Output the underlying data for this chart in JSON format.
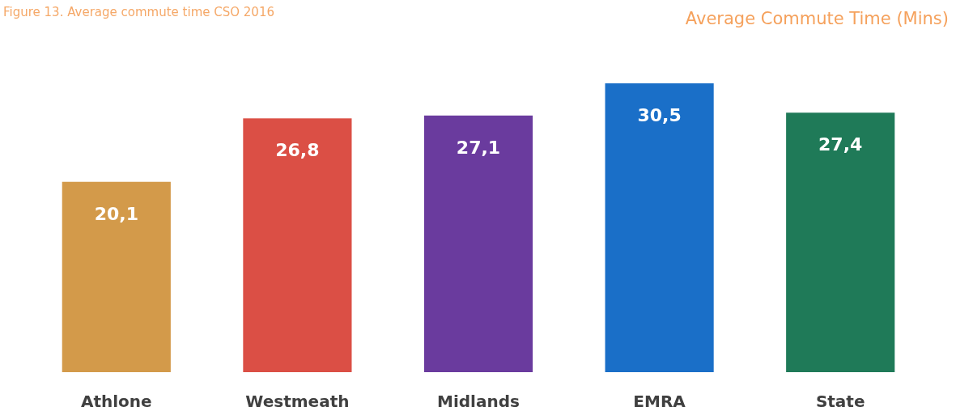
{
  "chart_data": {
    "type": "bar",
    "title": "Average Commute Time (Mins)",
    "annotations": [
      "Figure 13. Average commute time CSO 2016"
    ],
    "categories": [
      "Athlone",
      "Westmeath",
      "Midlands",
      "EMRA",
      "State"
    ],
    "values": [
      20.1,
      26.8,
      27.1,
      30.5,
      27.4
    ],
    "value_labels": [
      "20,1",
      "26,8",
      "27,1",
      "30,5",
      "27,4"
    ],
    "colors": [
      "#d39a4a",
      "#db4f45",
      "#6a3b9e",
      "#1a6fc8",
      "#1f7a58"
    ]
  }
}
